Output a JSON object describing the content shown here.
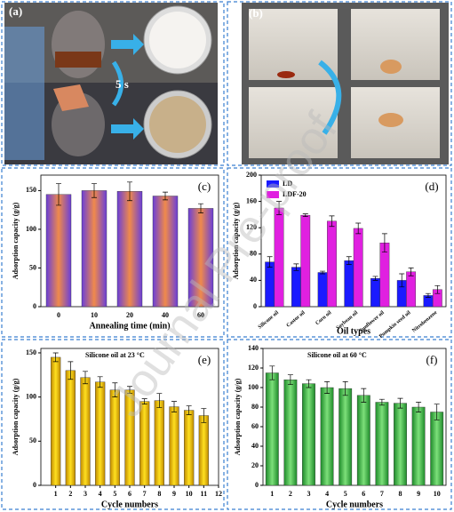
{
  "photos": {
    "a": {
      "label": "(a)",
      "annotation": "5 s"
    },
    "b": {
      "label": "(b)"
    }
  },
  "watermark": "Journal Pre-proof",
  "chart_data": [
    {
      "type": "bar",
      "panel_label": "(c)",
      "x_label": "Annealing time (min)",
      "y_label": "Adsorption capacity (g/g)",
      "categories": [
        "0",
        "10",
        "20",
        "40",
        "60"
      ],
      "values": [
        145,
        150,
        149,
        143,
        127
      ],
      "errors": [
        14,
        9,
        12,
        5,
        6
      ],
      "color": "#f08a4b",
      "edge_color": "#6a3fd8",
      "ylim": [
        0,
        170
      ],
      "yticks": [
        0,
        50,
        100,
        150
      ]
    },
    {
      "type": "bar",
      "panel_label": "(d)",
      "x_label": "Oil types",
      "y_label": "Adsorption capacity (g/g)",
      "categories": [
        "Silicone oil",
        "Castor oil",
        "Corn oil",
        "Soybean oil",
        "Sunflower oil",
        "Pumpkin seed oil",
        "Nitrobenzene"
      ],
      "series": [
        {
          "name": "LD",
          "color": "#1a1aff",
          "values": [
            68,
            60,
            52,
            70,
            43,
            40,
            17
          ],
          "errors": [
            8,
            5,
            2,
            6,
            3,
            10,
            3
          ]
        },
        {
          "name": "LDF-20",
          "color": "#e020e0",
          "values": [
            150,
            139,
            130,
            119,
            97,
            53,
            26
          ],
          "errors": [
            10,
            2,
            8,
            8,
            14,
            6,
            6
          ]
        }
      ],
      "legend": "upper left",
      "ylim": [
        0,
        200
      ],
      "yticks": [
        0,
        40,
        80,
        120,
        160,
        200
      ]
    },
    {
      "type": "bar",
      "panel_label": "(e)",
      "title": "Silicone oil at 23 °C",
      "x_label": "Cycle numbers",
      "y_label": "Adsorption capacity (g/g)",
      "x": [
        1,
        2,
        3,
        4,
        5,
        6,
        7,
        8,
        9,
        10,
        11
      ],
      "values": [
        145,
        130,
        122,
        117,
        108,
        108,
        95,
        96,
        89,
        85,
        79
      ],
      "errors": [
        5,
        10,
        7,
        6,
        8,
        4,
        3,
        8,
        6,
        5,
        8
      ],
      "color": "#ffe020",
      "edge_color": "#c08a00",
      "xlim": [
        0,
        12
      ],
      "xticks": [
        1,
        2,
        3,
        4,
        5,
        6,
        7,
        8,
        9,
        10,
        11,
        12
      ],
      "ylim": [
        0,
        155
      ],
      "yticks": [
        0,
        50,
        100,
        150
      ]
    },
    {
      "type": "bar",
      "panel_label": "(f)",
      "title": "Silicone oil at 60 °C",
      "x_label": "Cycle numbers",
      "y_label": "Adsorption capacity (g/g)",
      "categories": [
        "1",
        "2",
        "3",
        "4",
        "5",
        "6",
        "7",
        "8",
        "9",
        "10"
      ],
      "values": [
        115,
        108,
        104,
        100,
        99,
        92,
        85,
        84,
        80,
        75
      ],
      "errors": [
        7,
        5,
        4,
        6,
        7,
        7,
        3,
        5,
        5,
        8
      ],
      "color": "#7de07a",
      "edge_color": "#1e8a2a",
      "ylim": [
        0,
        140
      ],
      "yticks": [
        0,
        20,
        40,
        60,
        80,
        100,
        120,
        140
      ]
    }
  ]
}
